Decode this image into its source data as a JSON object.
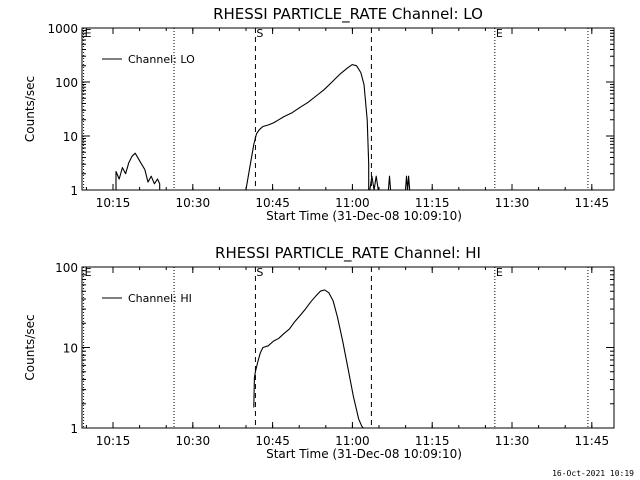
{
  "footer_timestamp": "16-Oct-2021 10:19",
  "chart_data": [
    {
      "type": "line",
      "title": "RHESSI PARTICLE_RATE Channel: LO",
      "xlabel": "Start Time (31-Dec-08 10:09:10)",
      "ylabel": "Counts/sec",
      "y_scale": "log",
      "ylim": [
        1,
        1000
      ],
      "xlim_minutes": [
        0,
        100
      ],
      "x_tick_labels": [
        "10:15",
        "10:30",
        "10:45",
        "11:00",
        "11:15",
        "11:30",
        "11:45"
      ],
      "x_tick_minutes": [
        5.83,
        20.83,
        35.83,
        50.83,
        65.83,
        80.83,
        95.83
      ],
      "y_tick_labels": [
        "1",
        "10",
        "100",
        "1000"
      ],
      "y_tick_values": [
        1,
        10,
        100,
        1000
      ],
      "legend": [
        "Channel: LO"
      ],
      "markers": [
        {
          "label": "E",
          "minute": 0.3,
          "style": "dotted"
        },
        {
          "label": "",
          "minute": 17.3,
          "style": "dotted"
        },
        {
          "label": "S",
          "minute": 32.6,
          "style": "dashed"
        },
        {
          "label": "",
          "minute": 54.4,
          "style": "dashed"
        },
        {
          "label": "E",
          "minute": 77.6,
          "style": "dotted"
        },
        {
          "label": "",
          "minute": 95.1,
          "style": "dotted"
        }
      ],
      "series": [
        {
          "name": "Channel: LO",
          "segments": [
            {
              "x": [
                6.4,
                6.4,
                7.0,
                7.6,
                8.2,
                8.8,
                9.4,
                10.0,
                10.6,
                11.2,
                11.8,
                12.4,
                13.0,
                13.6,
                14.2,
                14.6,
                14.6
              ],
              "y": [
                1,
                2.2,
                1.6,
                2.6,
                2.0,
                3.2,
                4.2,
                4.8,
                3.8,
                3.0,
                2.4,
                1.4,
                1.8,
                1.3,
                1.6,
                1.3,
                1
              ]
            },
            {
              "x": [
                30.8,
                31.5,
                32.3,
                32.8,
                33.3,
                34.0,
                35.0,
                36.0,
                37.0,
                38.0,
                39.5,
                41.0,
                42.5,
                44.0,
                45.5,
                47.0,
                48.5,
                50.0,
                50.8,
                51.6,
                52.4,
                53.0,
                53.6,
                53.9,
                53.9
              ],
              "y": [
                1,
                2.5,
                7.0,
                11,
                13,
                15,
                16,
                17.5,
                20,
                23,
                27,
                34,
                42,
                55,
                72,
                100,
                140,
                185,
                210,
                200,
                150,
                90,
                20,
                3,
                1
              ]
            },
            {
              "x": [
                54.1,
                54.5,
                54.9,
                55.3,
                55.7
              ],
              "y": [
                1,
                1.8,
                1,
                1.8,
                1
              ]
            },
            {
              "x": [
                57.6,
                57.8,
                58.0
              ],
              "y": [
                1,
                1.8,
                1
              ]
            },
            {
              "x": [
                60.8,
                61.0,
                61.2,
                61.4,
                61.6
              ],
              "y": [
                1,
                1.8,
                1,
                1.8,
                1
              ]
            }
          ]
        }
      ]
    },
    {
      "type": "line",
      "title": "RHESSI PARTICLE_RATE Channel: HI",
      "xlabel": "Start Time (31-Dec-08 10:09:10)",
      "ylabel": "Counts/sec",
      "y_scale": "log",
      "ylim": [
        1,
        100
      ],
      "xlim_minutes": [
        0,
        100
      ],
      "x_tick_labels": [
        "10:15",
        "10:30",
        "10:45",
        "11:00",
        "11:15",
        "11:30",
        "11:45"
      ],
      "x_tick_minutes": [
        5.83,
        20.83,
        35.83,
        50.83,
        65.83,
        80.83,
        95.83
      ],
      "y_tick_labels": [
        "1",
        "10",
        "100"
      ],
      "y_tick_values": [
        1,
        10,
        100
      ],
      "legend": [
        "Channel: HI"
      ],
      "markers": [
        {
          "label": "E",
          "minute": 0.3,
          "style": "dotted"
        },
        {
          "label": "",
          "minute": 17.3,
          "style": "dotted"
        },
        {
          "label": "S",
          "minute": 32.6,
          "style": "dashed"
        },
        {
          "label": "",
          "minute": 54.4,
          "style": "dashed"
        },
        {
          "label": "E",
          "minute": 77.6,
          "style": "dotted"
        },
        {
          "label": "",
          "minute": 95.1,
          "style": "dotted"
        }
      ],
      "series": [
        {
          "name": "Channel: HI",
          "segments": [
            {
              "x": [
                32.3,
                32.4,
                32.6,
                33.0,
                33.5,
                34.0,
                35.0,
                36.0,
                37.0,
                38.0,
                39.0,
                40.0,
                41.0,
                42.0,
                43.0,
                44.0,
                44.8,
                45.6,
                46.4,
                47.2,
                48.0,
                49.0,
                50.0,
                51.0,
                52.0,
                52.6,
                52.9
              ],
              "y": [
                1.8,
                4.2,
                5.0,
                6.5,
                8.5,
                10,
                10.5,
                12,
                13,
                15,
                17,
                21,
                25,
                30,
                37,
                44,
                50,
                52,
                48,
                38,
                24,
                12,
                5.5,
                2.5,
                1.3,
                1.05,
                1.0
              ]
            }
          ]
        }
      ]
    }
  ]
}
